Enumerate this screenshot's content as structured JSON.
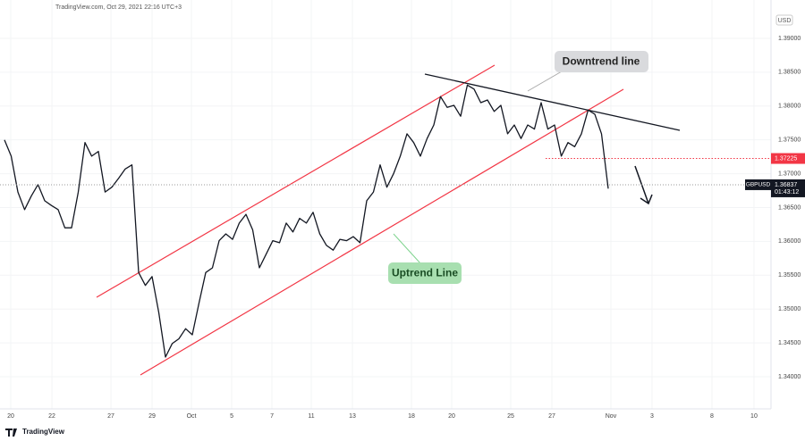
{
  "header": "TradingView.com, Oct 29, 2021 22:16 UTC+3",
  "footer": "TradingView",
  "chart_data": {
    "type": "line",
    "currency": "USD",
    "grid": true,
    "series": [
      {
        "name": "GBPUSD",
        "color": "#131722",
        "values": [
          1.375,
          1.3726,
          1.3673,
          1.3647,
          1.3667,
          1.3684,
          1.366,
          1.3653,
          1.3647,
          1.362,
          1.362,
          1.3673,
          1.3746,
          1.3726,
          1.3733,
          1.3673,
          1.368,
          1.3693,
          1.3707,
          1.3713,
          1.3554,
          1.3535,
          1.3548,
          1.3495,
          1.3429,
          1.3449,
          1.3456,
          1.3471,
          1.3462,
          1.3509,
          1.3554,
          1.3561,
          1.3601,
          1.3611,
          1.3603,
          1.3627,
          1.364,
          1.3617,
          1.3561,
          1.3581,
          1.3601,
          1.3598,
          1.3627,
          1.3614,
          1.3634,
          1.3627,
          1.3643,
          1.3611,
          1.3594,
          1.3587,
          1.3603,
          1.3601,
          1.3607,
          1.3598,
          1.366,
          1.3673,
          1.3713,
          1.368,
          1.37,
          1.3726,
          1.3759,
          1.3746,
          1.3726,
          1.3752,
          1.3772,
          1.3814,
          1.3798,
          1.3801,
          1.3785,
          1.3831,
          1.3825,
          1.3805,
          1.3809,
          1.3792,
          1.3801,
          1.3759,
          1.3772,
          1.3752,
          1.3772,
          1.3766,
          1.3805,
          1.3766,
          1.3772,
          1.3726,
          1.3746,
          1.374,
          1.3759,
          1.3794,
          1.3788,
          1.3759,
          1.3678
        ]
      }
    ],
    "last_value": 1.36837,
    "countdown": "01:43:12",
    "levels": [
      {
        "value": 1.37225,
        "color": "#f23645"
      }
    ],
    "annotations": [
      "Downtrend line",
      "Uptrend Line"
    ],
    "xlim": [
      -0.67,
      114.27
    ],
    "xticks": [
      {
        "value": 0.93,
        "label": "20"
      },
      {
        "value": 7.07,
        "label": "22"
      },
      {
        "value": 15.87,
        "label": "27"
      },
      {
        "value": 22,
        "label": "29"
      },
      {
        "value": 27.87,
        "label": "Oct"
      },
      {
        "value": 33.87,
        "label": "5"
      },
      {
        "value": 39.87,
        "label": "7"
      },
      {
        "value": 45.73,
        "label": "11"
      },
      {
        "value": 51.87,
        "label": "13"
      },
      {
        "value": 60.67,
        "label": "18"
      },
      {
        "value": 66.67,
        "label": "20"
      },
      {
        "value": 75.47,
        "label": "25"
      },
      {
        "value": 81.6,
        "label": "27"
      },
      {
        "value": 90.4,
        "label": "Nov"
      },
      {
        "value": 96.53,
        "label": "3"
      },
      {
        "value": 105.47,
        "label": "8"
      },
      {
        "value": 111.73,
        "label": "10"
      }
    ],
    "ylim": [
      1.33525,
      1.39567
    ],
    "yticks": [
      {
        "value": 1.34,
        "label": "1.34000"
      },
      {
        "value": 1.345,
        "label": "1.34500"
      },
      {
        "value": 1.35,
        "label": "1.35000"
      },
      {
        "value": 1.355,
        "label": "1.35500"
      },
      {
        "value": 1.36,
        "label": "1.36000"
      },
      {
        "value": 1.365,
        "label": "1.36500"
      },
      {
        "value": 1.37,
        "label": "1.37000"
      },
      {
        "value": 1.375,
        "label": "1.37500"
      },
      {
        "value": 1.38,
        "label": "1.38000"
      },
      {
        "value": 1.385,
        "label": "1.38500"
      },
      {
        "value": 1.39,
        "label": "1.39000"
      }
    ]
  }
}
